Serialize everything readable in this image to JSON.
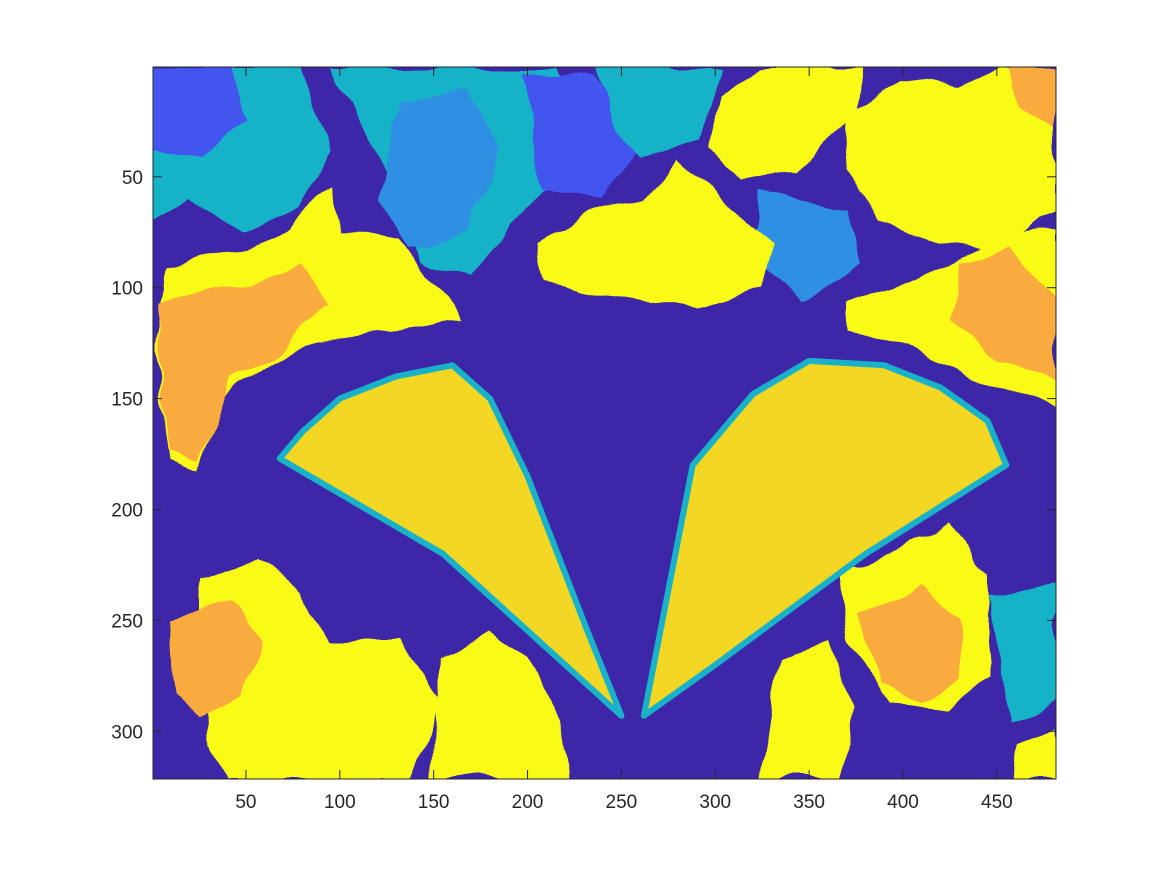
{
  "chart_data": {
    "type": "heatmap",
    "title": "",
    "xlabel": "",
    "ylabel": "",
    "xlim": [
      0.5,
      481.5
    ],
    "ylim": [
      0.5,
      321.5
    ],
    "y_reversed": true,
    "xticks": [
      50,
      100,
      150,
      200,
      250,
      300,
      350,
      400,
      450
    ],
    "yticks": [
      50,
      100,
      150,
      200,
      250,
      300
    ],
    "xtick_labels": [
      "50",
      "100",
      "150",
      "200",
      "250",
      "300",
      "350",
      "400",
      "450"
    ],
    "ytick_labels": [
      "50",
      "100",
      "150",
      "200",
      "250",
      "300"
    ],
    "colormap": "parula",
    "levels": 6,
    "level_colors": [
      "#3d26a8",
      "#4357ef",
      "#2e8fe3",
      "#19b2c8",
      "#f9ab3c",
      "#f9fb15"
    ],
    "grid": false,
    "legend": "none",
    "content": "segmented image (butterfly among flowers)",
    "regions": [
      {
        "name": "butterfly-left-wing",
        "level": "#f3d723",
        "points": [
          [
            68,
            177
          ],
          [
            155,
            220
          ],
          [
            250,
            293
          ],
          [
            232,
            255
          ],
          [
            200,
            185
          ],
          [
            180,
            150
          ],
          [
            160,
            135
          ],
          [
            130,
            140
          ],
          [
            100,
            150
          ],
          [
            80,
            165
          ]
        ]
      },
      {
        "name": "butterfly-right-wing",
        "level": "#f3d723",
        "points": [
          [
            262,
            293
          ],
          [
            300,
            270
          ],
          [
            380,
            220
          ],
          [
            455,
            180
          ],
          [
            445,
            160
          ],
          [
            420,
            145
          ],
          [
            390,
            135
          ],
          [
            350,
            133
          ],
          [
            320,
            148
          ],
          [
            288,
            180
          ]
        ]
      }
    ]
  }
}
